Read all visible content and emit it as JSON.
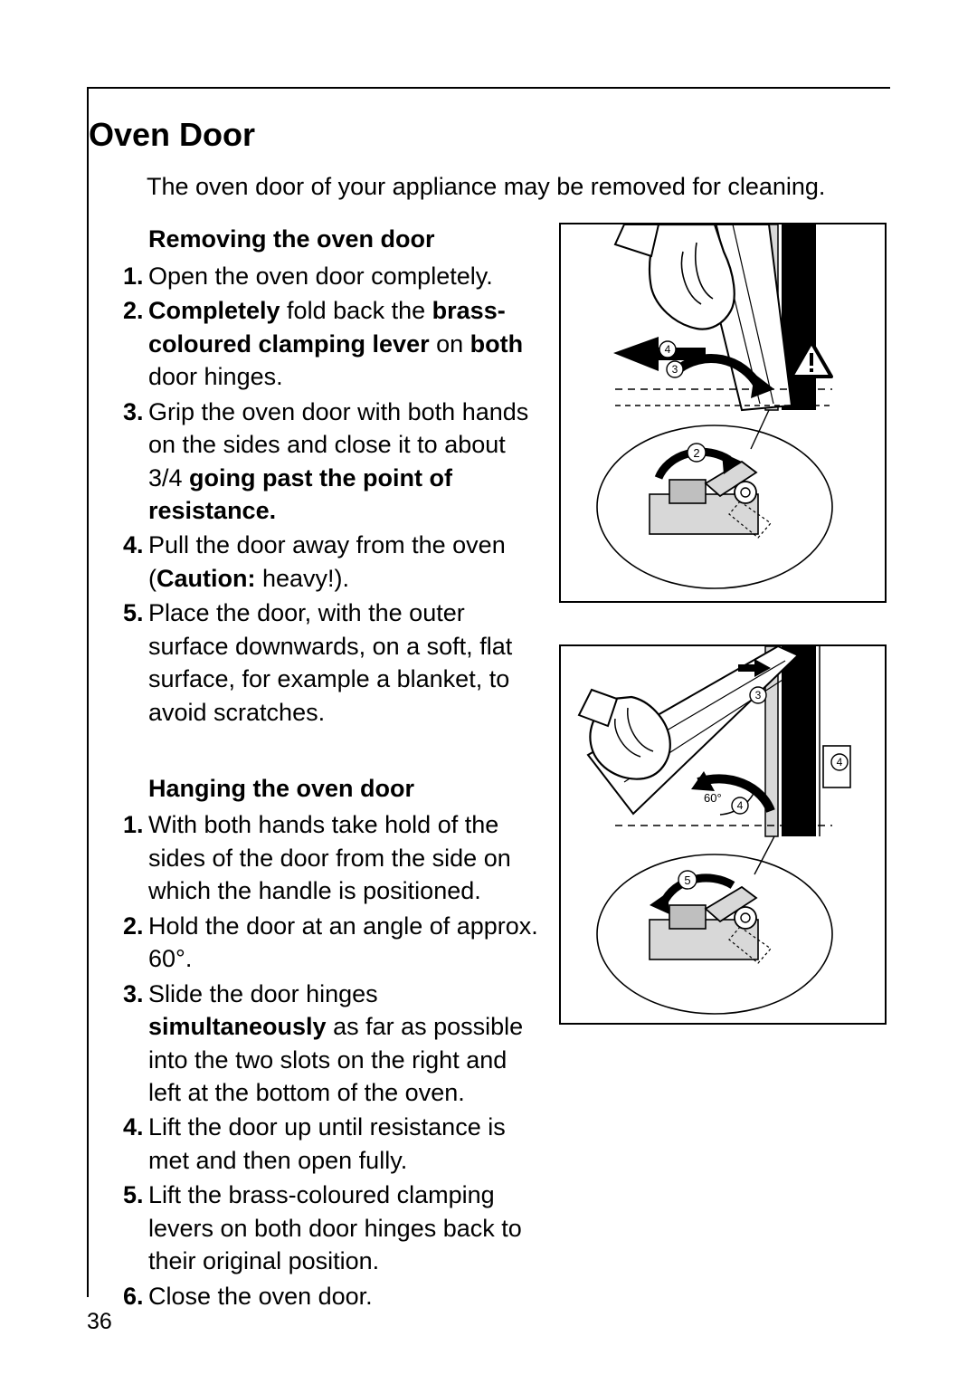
{
  "page_number": "36",
  "section_title": "Oven Door",
  "intro_text": "The oven door of your appliance may be removed for cleaning.",
  "removing": {
    "heading": "Removing the oven door",
    "steps": [
      {
        "html": "Open the oven door completely."
      },
      {
        "html": "<b>Completely</b> fold back the <b>brass-coloured clamping lever</b> on <b>both</b> door hinges."
      },
      {
        "html": "Grip the oven door with both hands on the sides and close it to about 3/4 <b>going past the point of resistance.</b>"
      },
      {
        "html": "Pull the door away from the oven (<b>Caution:</b> heavy!)."
      },
      {
        "html": "Place the door, with the outer surface downwards, on a soft, flat surface, for example a blanket, to avoid scratches."
      }
    ]
  },
  "hanging": {
    "heading": "Hanging the oven door",
    "steps": [
      {
        "html": "With both hands take hold of the sides of the door from the side on which the handle is positioned."
      },
      {
        "html": "Hold the door at an angle of approx. 60°."
      },
      {
        "html": "Slide the door hinges <b>simultaneously</b> as far as possible into the two slots on the right and left at the bottom of the oven."
      },
      {
        "html": "Lift the door up until resistance is met and then open fully."
      },
      {
        "html": "Lift the brass-coloured clamping levers on both door hinges back to their original position."
      },
      {
        "html": "Close the oven door."
      }
    ]
  },
  "figure1": {
    "callouts": [
      "4",
      "3",
      "2"
    ],
    "warning_triangle": true,
    "arrow_direction": "left-and-rotate"
  },
  "figure2": {
    "callouts": [
      "3",
      "4",
      "4",
      "5"
    ],
    "angle_label": "60°",
    "arrow_direction": "right-and-rotate"
  },
  "colors": {
    "text": "#000000",
    "background": "#ffffff",
    "illustration_light": "#d8d8d8",
    "illustration_mid": "#bfbfbf",
    "illustration_dark": "#000000"
  },
  "typography": {
    "title_size_pt": 27,
    "body_size_pt": 20,
    "font_family": "Futura / sans-serif"
  }
}
